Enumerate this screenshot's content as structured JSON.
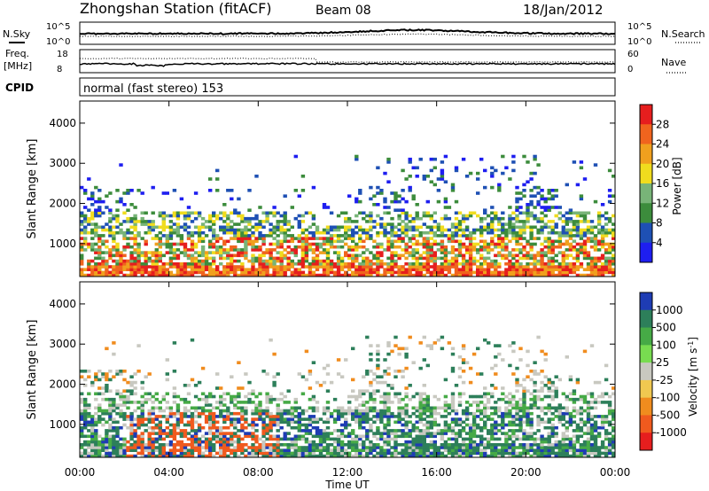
{
  "header": {
    "station": "Zhongshan Station (fitACF)",
    "beam": "Beam 08",
    "date": "18/Jan/2012"
  },
  "noise_panel": {
    "left_label": "N.Sky",
    "right_label": "N.Search",
    "left_ticks": [
      "10^5",
      "10^0"
    ],
    "right_ticks": [
      "10^5",
      "10^0"
    ]
  },
  "freq_panel": {
    "left_label_1": "Freq.",
    "left_label_2": "[MHz]",
    "right_label": "Nave",
    "left_ticks": [
      "18",
      "8"
    ],
    "right_ticks": [
      "60",
      "0"
    ]
  },
  "cpid": {
    "label": "CPID",
    "text": "normal (fast stereo) 153"
  },
  "x_axis": {
    "label": "Time UT",
    "ticks": [
      "00:00",
      "04:00",
      "08:00",
      "12:00",
      "16:00",
      "20:00",
      "00:00"
    ]
  },
  "chart_data": [
    {
      "type": "heatmap",
      "name": "power",
      "ylabel": "Slant Range [km]",
      "yticks": [
        "1000",
        "2000",
        "3000",
        "4000"
      ],
      "ylim": [
        180,
        4550
      ],
      "xlim": [
        0,
        24
      ],
      "colorbar_label": "Power [dB]",
      "colorbar_ticks": [
        "4",
        "8",
        "12",
        "16",
        "20",
        "24",
        "28"
      ],
      "colors": [
        "#1e1ef0",
        "#1e50b4",
        "#3c8c3c",
        "#78b478",
        "#f0dc1e",
        "#f0a01e",
        "#f0641e",
        "#e61e1e"
      ]
    },
    {
      "type": "heatmap",
      "name": "velocity",
      "ylabel": "Slant Range [km]",
      "yticks": [
        "1000",
        "2000",
        "3000",
        "4000"
      ],
      "ylim": [
        180,
        4550
      ],
      "xlim": [
        0,
        24
      ],
      "colorbar_label": "Velocity [m s^-1]",
      "colorbar_ticks": [
        "1000",
        "500",
        "100",
        "25",
        "-25",
        "-100",
        "-500",
        "-1000"
      ],
      "colors": [
        "#1e3cb4",
        "#2d7f5a",
        "#46aa46",
        "#78dc50",
        "#c8c8c0",
        "#f0c850",
        "#f08c1e",
        "#f05a1e",
        "#e61e1e"
      ]
    }
  ]
}
